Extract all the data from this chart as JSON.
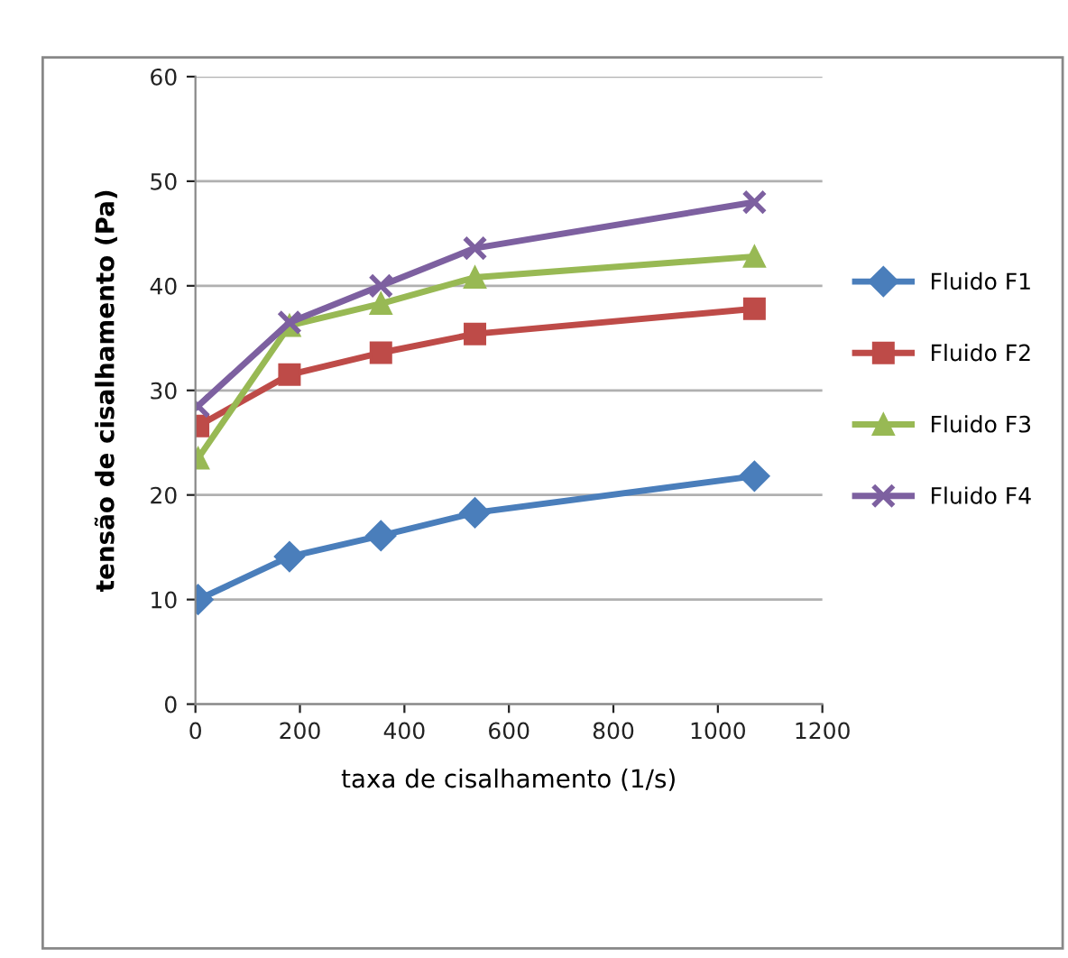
{
  "chart_data": {
    "type": "line",
    "xlabel": "taxa de cisalhamento (1/s)",
    "ylabel": "tensão de cisalhamento (Pa)",
    "x": [
      5,
      180,
      355,
      535,
      1070
    ],
    "series": [
      {
        "name": "Fluido F1",
        "color": "#4a7ebb",
        "marker": "diamond",
        "values": [
          10.0,
          14.1,
          16.1,
          18.3,
          21.8
        ]
      },
      {
        "name": "Fluido F2",
        "color": "#be4b48",
        "marker": "square",
        "values": [
          26.6,
          31.5,
          33.6,
          35.4,
          37.8
        ]
      },
      {
        "name": "Fluido F3",
        "color": "#98b954",
        "marker": "triangle",
        "values": [
          23.5,
          36.2,
          38.3,
          40.8,
          42.8
        ]
      },
      {
        "name": "Fluido F4",
        "color": "#7d60a0",
        "marker": "cross",
        "values": [
          28.5,
          36.5,
          40.0,
          43.6,
          48.0
        ]
      }
    ],
    "xlim": [
      0,
      1200
    ],
    "xticks": [
      0,
      200,
      400,
      600,
      800,
      1000,
      1200
    ],
    "ylim": [
      0,
      60
    ],
    "yticks": [
      0,
      10,
      20,
      30,
      40,
      50,
      60
    ],
    "grid": "y",
    "legend": "right"
  }
}
